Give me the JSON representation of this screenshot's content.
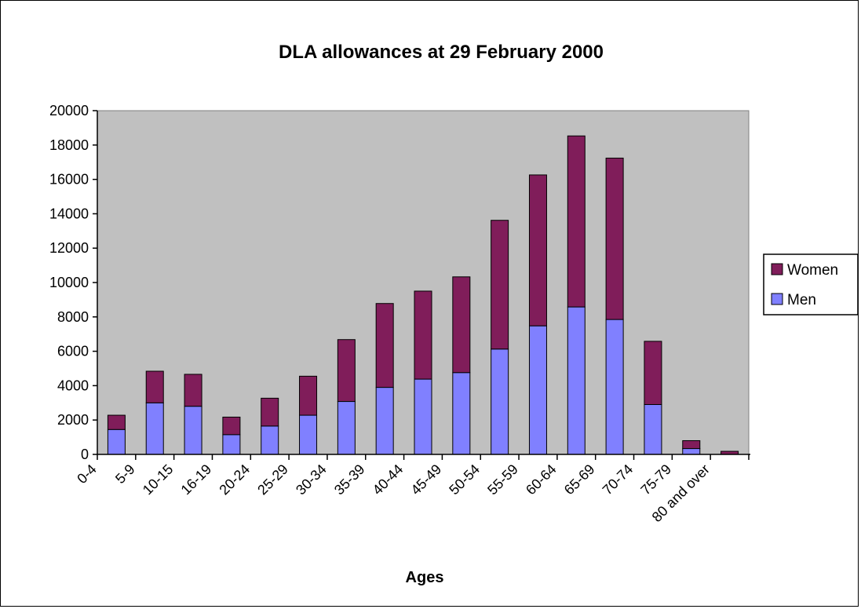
{
  "chart_data": {
    "type": "bar",
    "stacked": true,
    "title": "DLA allowances at 29 February 2000",
    "xlabel": "Ages",
    "ylabel": "",
    "ylim": [
      0,
      20000
    ],
    "yticks": [
      0,
      2000,
      4000,
      6000,
      8000,
      10000,
      12000,
      14000,
      16000,
      18000,
      20000
    ],
    "categories": [
      "0-4",
      "5-9",
      "10-15",
      "16-19",
      "20-24",
      "25-29",
      "30-34",
      "35-39",
      "40-44",
      "45-49",
      "50-54",
      "55-59",
      "60-64",
      "65-69",
      "70-74",
      "75-79",
      "80 and over"
    ],
    "series": [
      {
        "name": "Men",
        "color": "#8080ff",
        "values": [
          1450,
          3000,
          2800,
          1150,
          1650,
          2280,
          3080,
          3900,
          4380,
          4760,
          6130,
          7480,
          8580,
          7850,
          2900,
          340,
          0
        ]
      },
      {
        "name": "Women",
        "color": "#801d5a",
        "values": [
          830,
          1840,
          1860,
          1020,
          1620,
          2270,
          3600,
          4880,
          5120,
          5570,
          7490,
          8780,
          9950,
          9390,
          3680,
          460,
          180
        ]
      }
    ],
    "legend_position": "right",
    "plot_background": "#c0c0c0",
    "grid": false
  }
}
